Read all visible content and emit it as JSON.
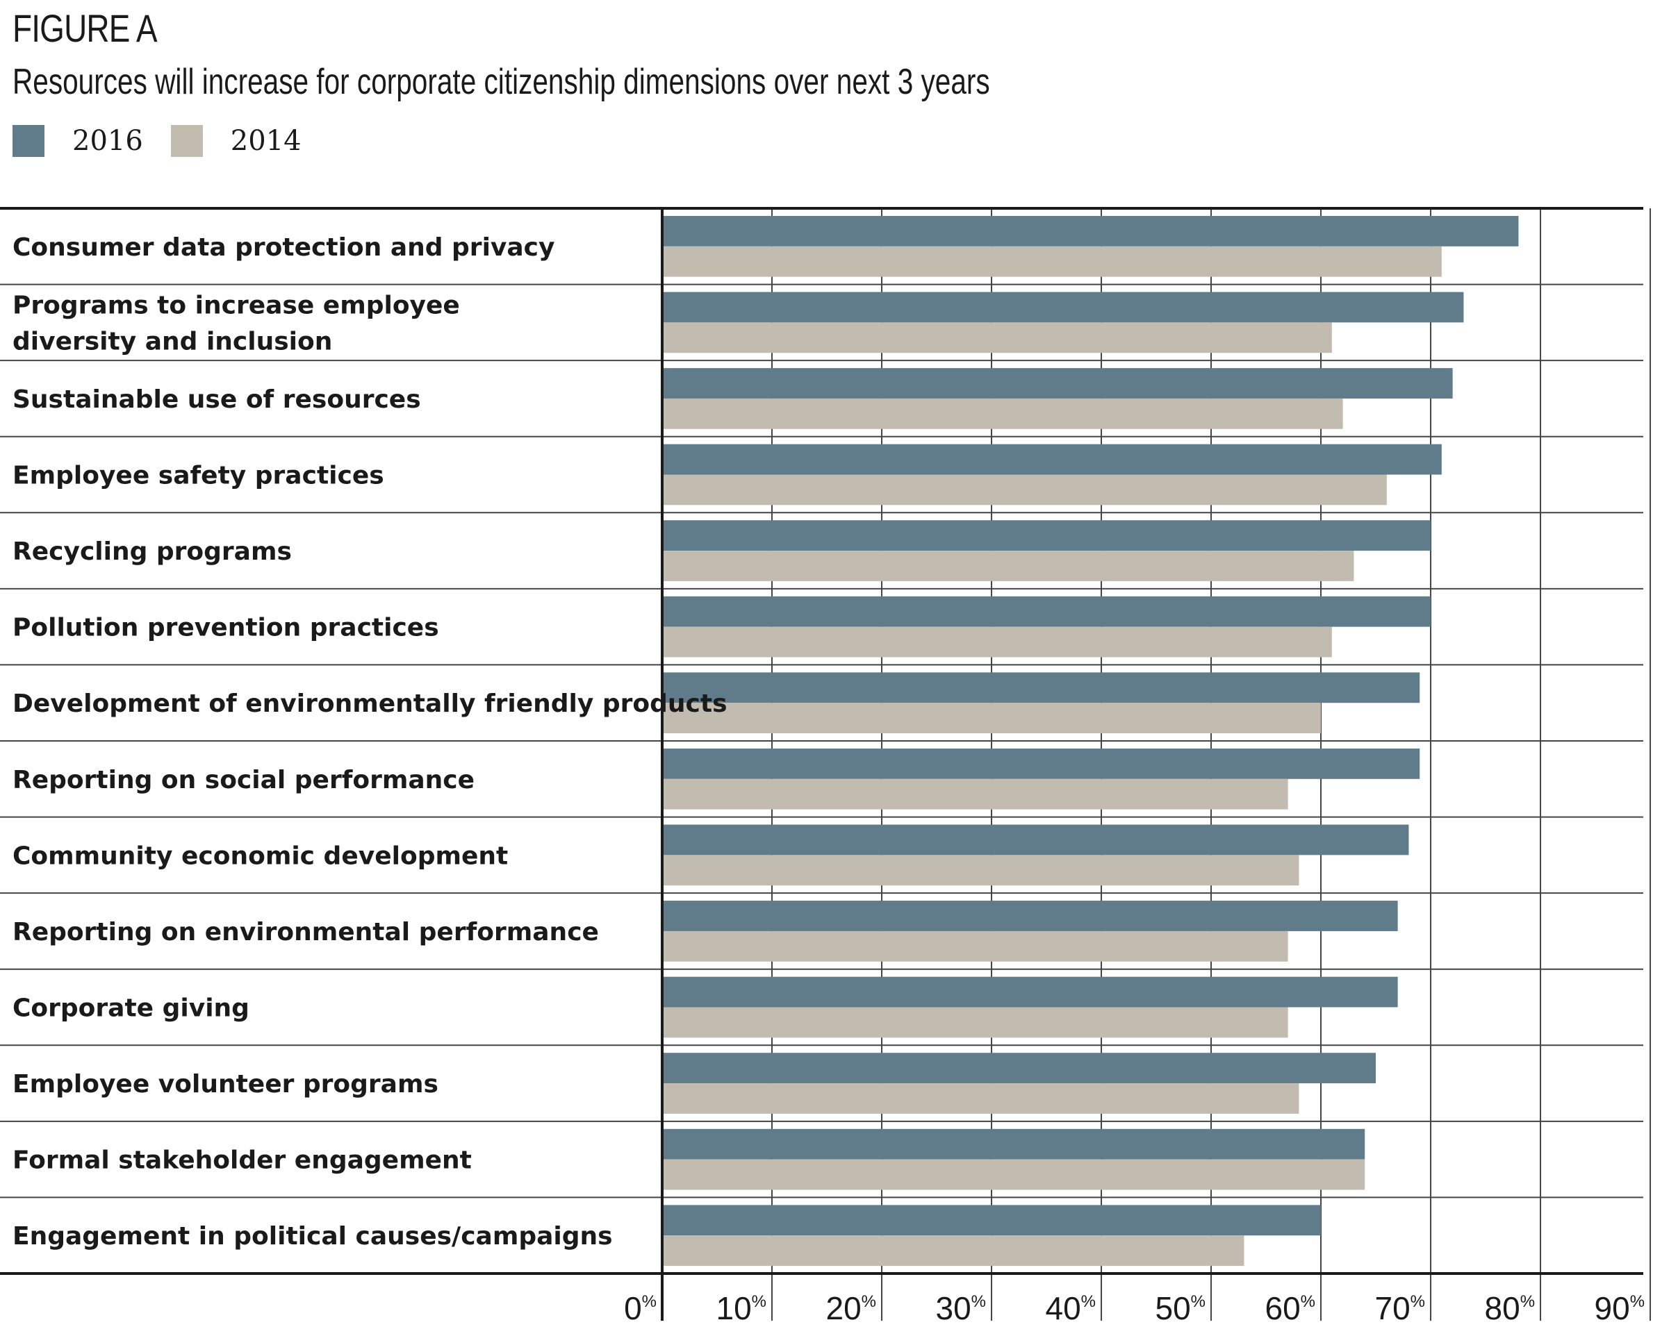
{
  "figure_label": "FIGURE A",
  "colors": {
    "series_2016": "#607b89",
    "series_2014": "#c2bbb0",
    "axis": "#1a1a1a",
    "grid": "#444444"
  },
  "chart_data": {
    "type": "bar",
    "orientation": "horizontal",
    "title": "Resources will increase for corporate citizenship dimensions over next 3 years",
    "xlabel": "",
    "ylabel": "",
    "xlim": [
      0,
      90
    ],
    "x_ticks": [
      "0",
      "10",
      "20",
      "30",
      "40",
      "50",
      "60",
      "70",
      "80",
      "90"
    ],
    "tick_suffix": "%",
    "grid": true,
    "legend": "top-left",
    "categories": [
      [
        "Consumer data protection and privacy"
      ],
      [
        "Programs to increase employee",
        "diversity and inclusion"
      ],
      [
        "Sustainable use of resources"
      ],
      [
        "Employee safety practices"
      ],
      [
        "Recycling programs"
      ],
      [
        "Pollution prevention practices"
      ],
      [
        "Development of environmentally friendly products"
      ],
      [
        "Reporting on social performance"
      ],
      [
        "Community economic development"
      ],
      [
        "Reporting on environmental performance"
      ],
      [
        "Corporate giving"
      ],
      [
        "Employee volunteer programs"
      ],
      [
        "Formal stakeholder engagement"
      ],
      [
        "Engagement in political causes/campaigns"
      ]
    ],
    "series": [
      {
        "name": "2016",
        "values": [
          78,
          73,
          72,
          71,
          70,
          70,
          69,
          69,
          68,
          67,
          67,
          65,
          64,
          60
        ]
      },
      {
        "name": "2014",
        "values": [
          71,
          61,
          62,
          66,
          63,
          61,
          60,
          57,
          58,
          57,
          57,
          58,
          64,
          53
        ]
      }
    ]
  }
}
